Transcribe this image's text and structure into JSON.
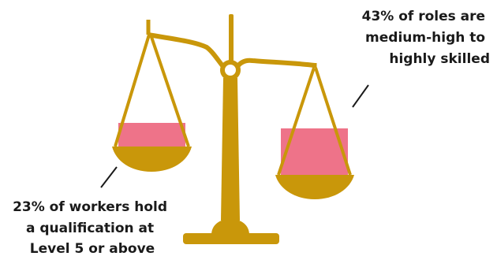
{
  "colors": {
    "scale": "#c9970a",
    "fill": "#ee7389",
    "text": "#1a1a1a"
  },
  "right_annotation": {
    "lines": [
      "43% of roles are",
      "medium-high to",
      "highly skilled"
    ]
  },
  "left_annotation": {
    "lines": [
      "23% of workers hold",
      "a qualification at",
      "Level 5 or above"
    ]
  }
}
